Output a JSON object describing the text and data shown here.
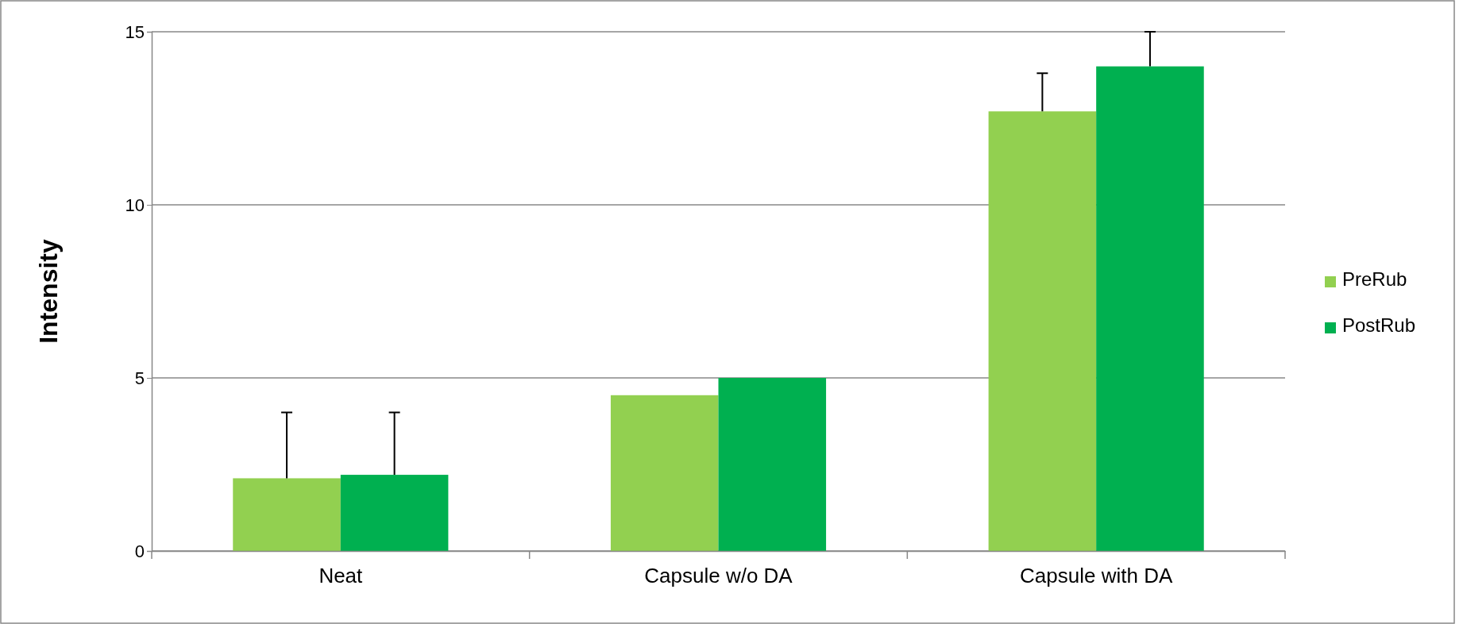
{
  "chart_data": {
    "type": "bar",
    "ylabel": "Intensity",
    "categories": [
      "Neat",
      "Capsule w/o DA",
      "Capsule with DA"
    ],
    "series": [
      {
        "name": "PreRub",
        "color": "#92d050",
        "values": [
          2.1,
          4.5,
          12.7
        ],
        "errors": [
          [
            2.1,
            4.0
          ],
          null,
          [
            12.7,
            13.8
          ]
        ]
      },
      {
        "name": "PostRub",
        "color": "#00b050",
        "values": [
          2.2,
          5.0,
          14.0
        ],
        "errors": [
          [
            2.2,
            4.0
          ],
          null,
          [
            14.0,
            15.0
          ]
        ]
      }
    ],
    "ylim": [
      0,
      15
    ],
    "yticks": [
      0,
      5,
      10,
      15
    ],
    "grid": "y",
    "legend": "right"
  }
}
